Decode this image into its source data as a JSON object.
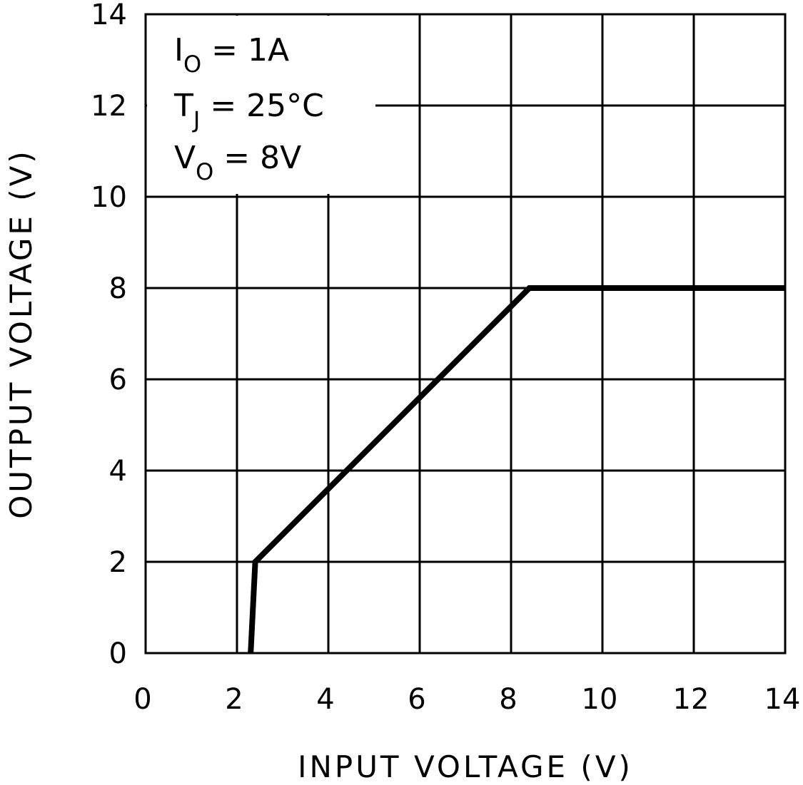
{
  "chart_data": {
    "type": "line",
    "title": "",
    "xlabel": "INPUT VOLTAGE (V)",
    "ylabel": "OUTPUT VOLTAGE (V)",
    "xlim": [
      0,
      14
    ],
    "ylim": [
      0,
      14
    ],
    "xticks": [
      "0",
      "2",
      "4",
      "6",
      "8",
      "10",
      "12",
      "14"
    ],
    "yticks": [
      "0",
      "2",
      "4",
      "6",
      "8",
      "10",
      "12",
      "14"
    ],
    "grid": true,
    "series": [
      {
        "x": [
          2.3,
          2.4,
          8.4,
          14
        ],
        "y": [
          0,
          2,
          8,
          8
        ]
      }
    ],
    "annotations": [
      {
        "main": "I",
        "sub": "O",
        "rest": " = 1A"
      },
      {
        "main": "T",
        "sub": "J",
        "rest": " = 25°C"
      },
      {
        "main": "V",
        "sub": "O",
        "rest": " = 8V"
      }
    ],
    "colors": {
      "line": "#000000",
      "grid": "#000000",
      "background": "#ffffff"
    }
  }
}
